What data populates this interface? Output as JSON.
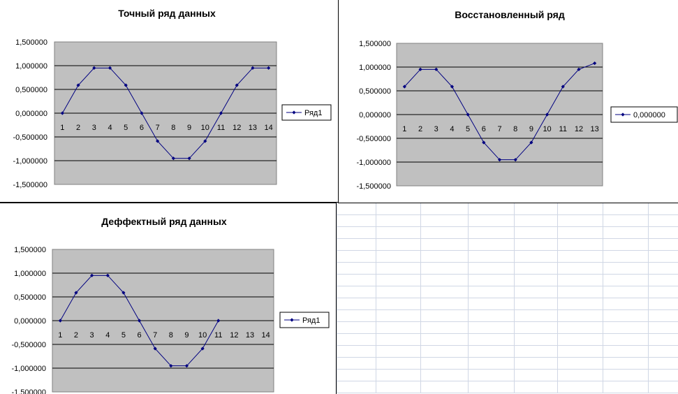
{
  "chart_data": [
    {
      "type": "line",
      "title": "Точный ряд данных",
      "categories": [
        "1",
        "2",
        "3",
        "4",
        "5",
        "6",
        "7",
        "8",
        "9",
        "10",
        "11",
        "12",
        "13",
        "14"
      ],
      "y_ticks": [
        "1,500000",
        "1,000000",
        "0,500000",
        "0,000000",
        "-0,500000",
        "-1,000000",
        "-1,500000"
      ],
      "ylim": [
        -1.5,
        1.5
      ],
      "grid": true,
      "legend_position": "right",
      "series": [
        {
          "name": "Ряд1",
          "values": [
            0,
            0.588,
            0.951,
            0.951,
            0.588,
            0,
            -0.588,
            -0.951,
            -0.951,
            -0.588,
            0,
            0.588,
            0.951,
            0.951
          ]
        }
      ]
    },
    {
      "type": "line",
      "title": "Восстановленный ряд",
      "categories": [
        "1",
        "2",
        "3",
        "4",
        "5",
        "6",
        "7",
        "8",
        "9",
        "10",
        "11",
        "12",
        "13"
      ],
      "y_ticks": [
        "1,500000",
        "1,000000",
        "0,500000",
        "0,000000",
        "-0,500000",
        "-1,000000",
        "-1,500000"
      ],
      "ylim": [
        -1.5,
        1.5
      ],
      "grid": true,
      "legend_position": "right",
      "series": [
        {
          "name": "0,000000",
          "values": [
            0.588,
            0.951,
            0.951,
            0.588,
            0,
            -0.588,
            -0.951,
            -0.951,
            -0.588,
            0,
            0.588,
            0.951,
            1.08
          ]
        }
      ]
    },
    {
      "type": "line",
      "title": "Деффектный ряд данных",
      "categories": [
        "1",
        "2",
        "3",
        "4",
        "5",
        "6",
        "7",
        "8",
        "9",
        "10",
        "11",
        "12",
        "13",
        "14"
      ],
      "y_ticks": [
        "1,500000",
        "1,000000",
        "0,500000",
        "0,000000",
        "-0,500000",
        "-1,000000",
        "-1,500000"
      ],
      "ylim": [
        -1.5,
        1.5
      ],
      "grid": true,
      "legend_position": "right",
      "series": [
        {
          "name": "Ряд1",
          "values": [
            0,
            0.588,
            0.951,
            0.951,
            0.588,
            0,
            -0.588,
            -0.951,
            -0.951,
            -0.588,
            0,
            null,
            null,
            null
          ]
        }
      ]
    }
  ],
  "colors": {
    "line": "#000080",
    "plot_bg": "#c0c0c0",
    "gridline": "#000000",
    "sheet_grid": "#d0d7e5"
  }
}
